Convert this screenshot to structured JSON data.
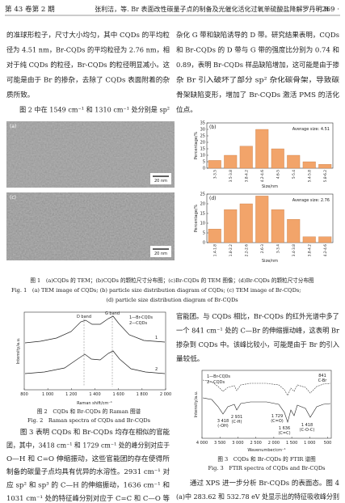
{
  "header": {
    "issue": "第 43 卷第 2 期",
    "running_title": "张利洁，等. Br 表面改性碳量子点的制备及光催化活化过氧单硫酸盐降解罗丹明 B",
    "page": "· 269 ·"
  },
  "body": {
    "left_top": [
      "的准球形粒子，尺寸大小均匀，其中 CQDs 的平均粒",
      "径为 4.51 nm，Br-CQDs 的平均粒径为 2.76 nm，相",
      "对于纯 CQDs 的粒径，Br-CQDs 的粒径明显减小。这",
      "可能是由于 Br 的掺杂，去除了 CQDs 表面附着的杂",
      "质所致。",
      "　　图 2 中在 1549 cm⁻¹ 和 1310 cm⁻¹ 处分别是 sp²"
    ],
    "right_top": [
      "杂化 G 带和缺陷诱导的 D 带。研究结果表明，CQDs",
      "和 Br-CQDs 的 D 带与 G 带的强度比分别为 0.74 和",
      "0.89，表明 Br-CQDs 样品缺陷增加，这可能是由于掺",
      "杂 Br 引入破坏了部分 sp² 杂化碳骨架，导致碳",
      "骨架缺陷变形，增加了 Br-CQDs 激活 PMS 的活化",
      "位点。"
    ],
    "left_bottom": [
      "　　图 3 表明 CQDs 和 Br-CQDs 均存在相似的官能",
      "团，其中，3418 cm⁻¹ 和 1729 cm⁻¹ 处的峰分别对应于",
      "O—H 和 C=O 伸缩振动，这些官能团的存在使得所",
      "制备的碳量子点均具有优异的水溶性。2931 cm⁻¹ 对",
      "应 sp² 和 sp³ 的 C—H 的伸缩振动，1636 cm⁻¹ 和",
      "1031 cm⁻¹ 处的特征峰分别对应于 C=C 和 C—O 等"
    ],
    "right_middle": [
      "官能团。与 CQDs 相比，Br-CQDs 的红外光谱中多了",
      "一个 841 cm⁻¹ 处的 C—Br 的伸缩振动峰，这表明 Br",
      "掺杂到 CQDs 中。该峰比较小，可能是由于 Br 的引入",
      "量较低。"
    ],
    "right_bottom": [
      "　　通过 XPS 进一步分析 Br-CQDs 的表面态。图 4",
      "(a)中 283.62 和 532.78 eV 处显示出的特征吸收峰分别"
    ]
  },
  "figure1": {
    "a": {
      "label": "(a)",
      "scale": "20 nm"
    },
    "c": {
      "label": "(c)",
      "scale": "20 nm"
    },
    "b": {
      "label": "(b)",
      "annotation": "Average size: 4.51",
      "xlabel": "Size/nm",
      "ylabel": "Percentage/%",
      "color": "#f2a46a",
      "categories": [
        "3-3.5",
        "3.5-3.8",
        "3.8-4.2",
        "4.2-4.6",
        "4.6-5",
        "5-5.4",
        "5.4-5.8",
        "5.8-6.2"
      ],
      "values": [
        6,
        10,
        17,
        30,
        15,
        10,
        5,
        3
      ],
      "ylim": [
        0,
        35
      ],
      "yticks": [
        0,
        5,
        10,
        15,
        20,
        25,
        30,
        35
      ]
    },
    "d": {
      "label": "(d)",
      "annotation": "Average size: 2.76",
      "xlabel": "Size/nm",
      "ylabel": "Percentage/%",
      "color": "#f2a46a",
      "categories": [
        "1.4-1.8",
        "1.8-2.2",
        "2.2-2.6",
        "2.6-3",
        "3-3.4",
        "3.4-3.8",
        "3.8-4.2",
        "4.2-4.6"
      ],
      "values": [
        7,
        17,
        20,
        24,
        17,
        12,
        3,
        3
      ],
      "ylim": [
        0,
        25
      ],
      "yticks": [
        0,
        5,
        10,
        15,
        20,
        25
      ]
    },
    "caption_cn": "图 1　(a)CQDs 的 TEM；(b)CQDs 的颗粒尺寸分布图；(c)Br-CQDs 的 TEM 图像；(d)Br-CQDs 的颗粒尺寸分布图",
    "caption_en": [
      "Fig. 1　(a) TEM image of CQDs; (b) particle size distribution diagram of CQDs; (c) TEM image of Br-CQDs;",
      "(d) particle size distribution diagram of Br-CQDs"
    ]
  },
  "figure2": {
    "xlabel": "Raman shift/cm⁻¹",
    "ylabel": "Intensity/a.u.",
    "xlim": [
      800,
      2000
    ],
    "xticks": [
      {
        "value": 800,
        "label": "800"
      },
      {
        "value": 1000,
        "label": "1 000"
      },
      {
        "value": 1200,
        "label": "1 200"
      },
      {
        "value": 1400,
        "label": "1 400"
      },
      {
        "value": 1600,
        "label": "1 600"
      },
      {
        "value": 1800,
        "label": "1 800"
      },
      {
        "value": 2000,
        "label": "2 000"
      }
    ],
    "bands": [
      "D band",
      "G band"
    ],
    "legend": [
      "1—Br-CQDs",
      "2—CQDs"
    ],
    "curve_labels": [
      "1",
      "2"
    ],
    "caption_cn": "图 2　CQDs 和 Br-CQDs 的 Raman 图谱",
    "caption_en": "Fig. 2　Raman spectra of CQDs and Br-CQDs"
  },
  "figure3": {
    "xlabel": "Wavenumber/cm⁻¹",
    "ylabel": "Intensity/a.u.",
    "xlim": [
      4000,
      400
    ],
    "xticks": [
      {
        "value": 4000,
        "label": "4 000"
      },
      {
        "value": 3500,
        "label": "3 500"
      },
      {
        "value": 3000,
        "label": "3 000"
      },
      {
        "value": 2500,
        "label": "2 500"
      },
      {
        "value": 2000,
        "label": "2 000"
      },
      {
        "value": 1500,
        "label": "1 500"
      },
      {
        "value": 1000,
        "label": "1 000"
      },
      {
        "value": 500,
        "label": "500"
      }
    ],
    "legend": [
      "1—Br-CQDs",
      "2—CQDs"
    ],
    "annotations": [
      "841",
      "C-Br",
      "3 418",
      "(-OH)",
      "2 931",
      "(C-H)",
      "1 729",
      "(C=O)",
      "1 636",
      "(C=C)",
      "1 418",
      "(C-O-C)"
    ],
    "caption_cn": "图 3　CQDs 和 Br-CQDs 的 FTIR 谱图",
    "caption_en": "Fig. 3　FTIR spectra of CQDs and Br-CQDs"
  }
}
